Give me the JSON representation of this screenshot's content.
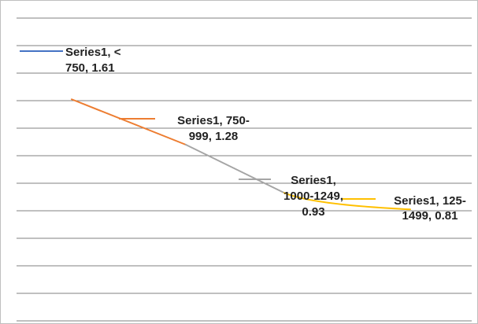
{
  "chart_data": {
    "type": "line",
    "categories": [
      "< 750",
      "750-999",
      "1000-1249",
      "125-1499"
    ],
    "series": [
      {
        "name": "Series1",
        "values": [
          1.61,
          1.28,
          0.93,
          0.81
        ]
      }
    ],
    "segment_colors": [
      "#ED7D31",
      "#A5A5A5",
      "#FFC000"
    ],
    "legend_marker_colors": [
      "#4472C4",
      "#ED7D31",
      "#A5A5A5",
      "#FFC000"
    ],
    "data_labels": [
      [
        "Series1, <",
        "750, 1.61"
      ],
      [
        "Series1, 750-",
        "999, 1.28"
      ],
      [
        "Series1,",
        "1000-1249,",
        "0.93"
      ],
      [
        "Series1, 125-",
        "1499, 0.81"
      ]
    ],
    "ylim": [
      0,
      2.2
    ],
    "grid": true,
    "gridline_color": "#808080",
    "title": "",
    "xlabel": "",
    "ylabel": ""
  }
}
